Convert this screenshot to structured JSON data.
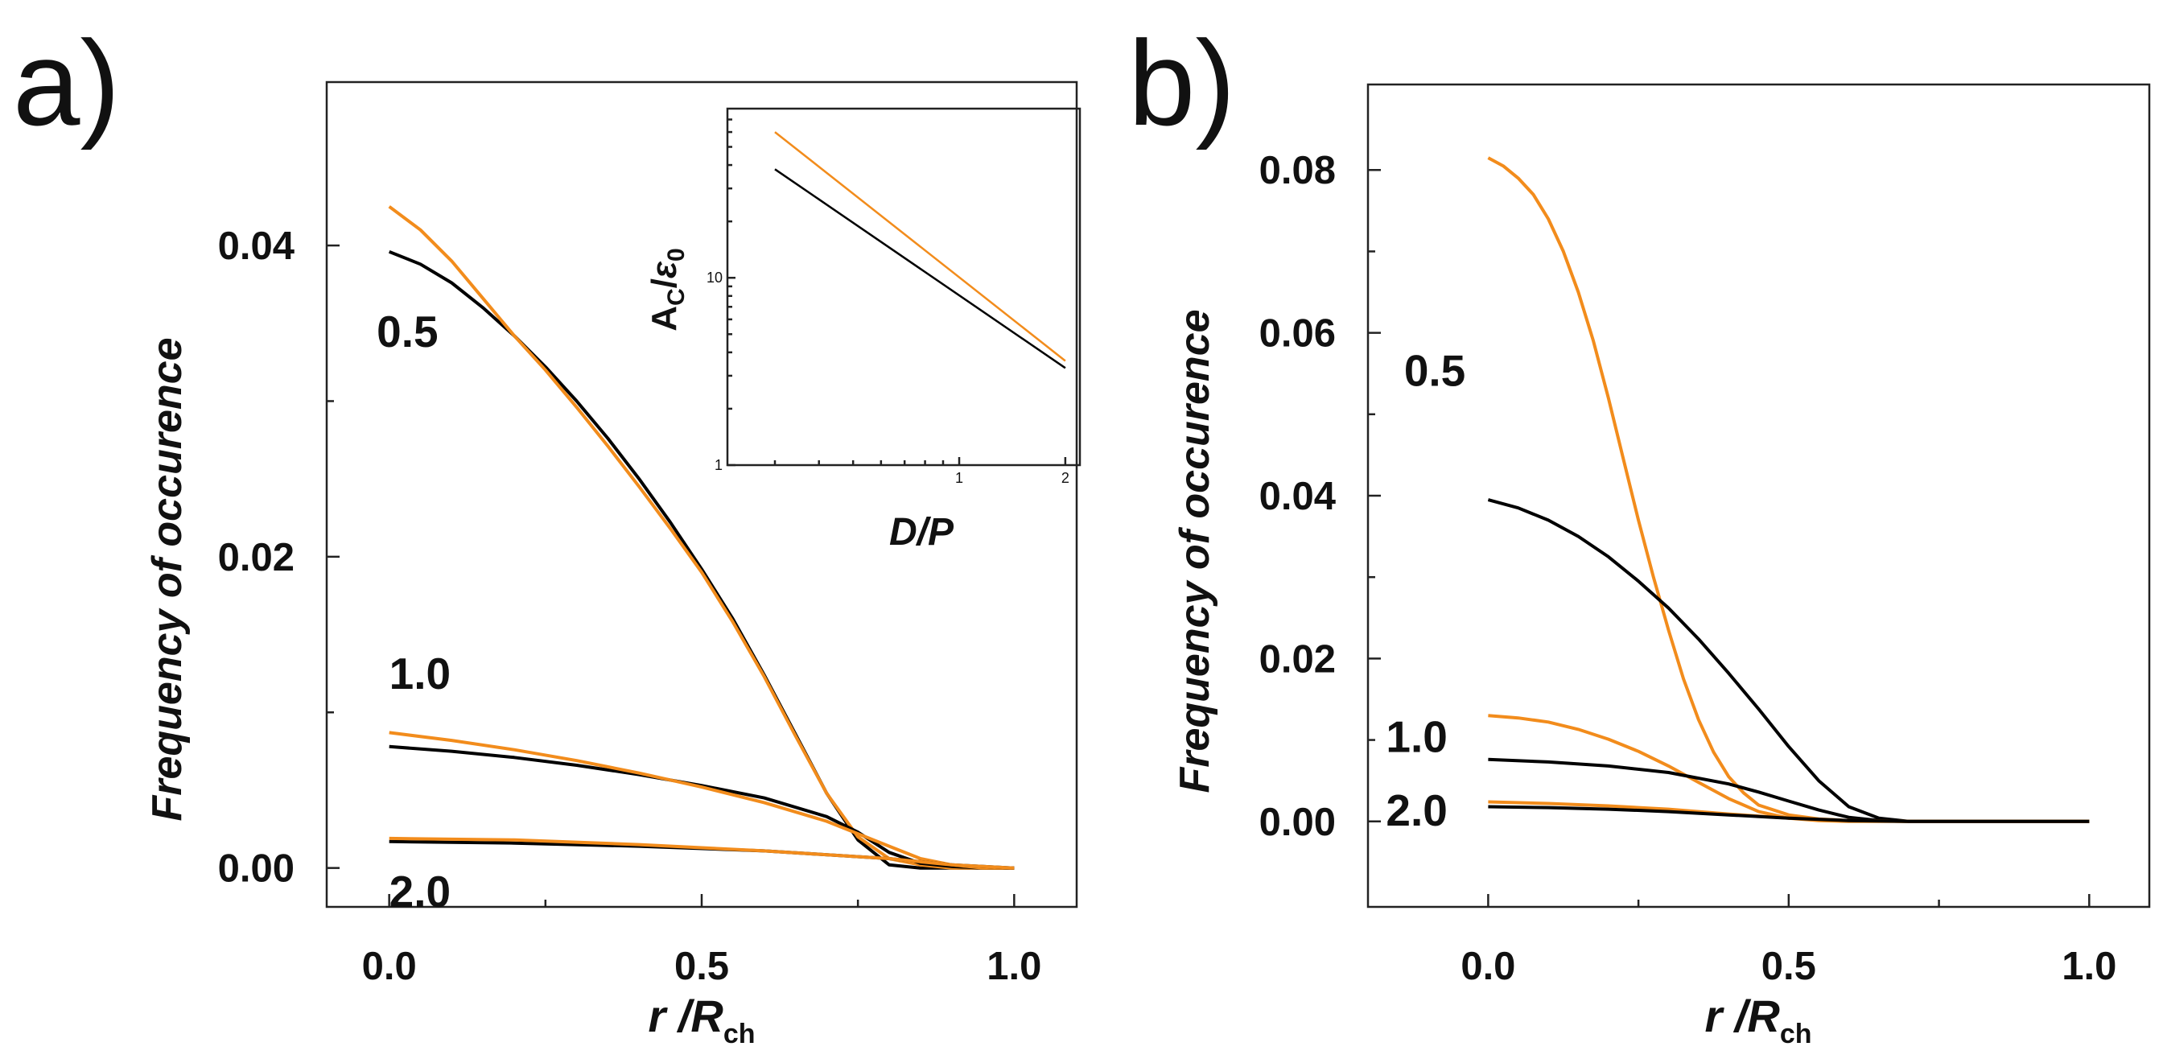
{
  "colors": {
    "black": "#000000",
    "orange": "#f28c1c"
  },
  "chart_data": [
    {
      "panel": "a)",
      "type": "line",
      "xlabel": "r /R",
      "xlabel_sub": "ch",
      "ylabel": "Frequency of occurence",
      "xlim": [
        -0.1,
        1.1
      ],
      "ylim": [
        -0.0025,
        0.0505
      ],
      "xticks": [
        "0.0",
        "0.5",
        "1.0"
      ],
      "xtick_values": [
        0,
        0.5,
        1
      ],
      "yticks": [
        "0.00",
        "0.02",
        "0.04"
      ],
      "ytick_values": [
        0,
        0.02,
        0.04
      ],
      "curve_labels": [
        {
          "text": "0.5",
          "x": -0.02,
          "y": 0.0335
        },
        {
          "text": "1.0",
          "x": 0.0,
          "y": 0.0115
        },
        {
          "text": "2.0",
          "x": 0.0,
          "y": -0.0025
        }
      ],
      "series": [
        {
          "color": "black",
          "x": [
            0,
            0.05,
            0.1,
            0.15,
            0.2,
            0.25,
            0.3,
            0.35,
            0.4,
            0.45,
            0.5,
            0.55,
            0.6,
            0.65,
            0.7,
            0.75,
            0.8,
            0.85,
            0.9,
            0.95,
            1.0
          ],
          "y": [
            0.0396,
            0.0388,
            0.0376,
            0.036,
            0.0342,
            0.0322,
            0.03,
            0.0276,
            0.025,
            0.0222,
            0.0192,
            0.016,
            0.0124,
            0.0086,
            0.0048,
            0.0018,
            0.0002,
            0.0,
            0.0,
            0.0,
            0.0
          ]
        },
        {
          "color": "orange",
          "x": [
            0,
            0.05,
            0.1,
            0.15,
            0.2,
            0.25,
            0.3,
            0.35,
            0.4,
            0.45,
            0.5,
            0.55,
            0.6,
            0.65,
            0.7,
            0.75,
            0.8,
            0.85,
            0.9,
            0.95,
            1.0
          ],
          "y": [
            0.0425,
            0.041,
            0.039,
            0.0366,
            0.0342,
            0.032,
            0.0296,
            0.0271,
            0.0245,
            0.0218,
            0.019,
            0.0158,
            0.0123,
            0.0085,
            0.0048,
            0.002,
            0.0006,
            0.0002,
            0.0,
            0.0,
            0.0
          ]
        },
        {
          "color": "black",
          "x": [
            0,
            0.1,
            0.2,
            0.3,
            0.4,
            0.5,
            0.6,
            0.7,
            0.75,
            0.8,
            0.85,
            0.9,
            0.95,
            1.0
          ],
          "y": [
            0.0078,
            0.0075,
            0.0071,
            0.0066,
            0.006,
            0.0053,
            0.0045,
            0.0033,
            0.0023,
            0.001,
            0.0003,
            0.0001,
            0.0,
            0.0
          ]
        },
        {
          "color": "orange",
          "x": [
            0,
            0.1,
            0.2,
            0.3,
            0.4,
            0.5,
            0.6,
            0.7,
            0.75,
            0.8,
            0.85,
            0.9,
            0.95,
            1.0
          ],
          "y": [
            0.0087,
            0.0082,
            0.0076,
            0.0069,
            0.0061,
            0.0052,
            0.0042,
            0.003,
            0.0022,
            0.0014,
            0.0006,
            0.0002,
            0.0,
            0.0
          ]
        },
        {
          "color": "black",
          "x": [
            0,
            0.2,
            0.4,
            0.6,
            0.8,
            0.9,
            1.0
          ],
          "y": [
            0.0017,
            0.0016,
            0.0014,
            0.0011,
            0.0006,
            0.0002,
            0.0
          ]
        },
        {
          "color": "orange",
          "x": [
            0,
            0.2,
            0.4,
            0.6,
            0.8,
            0.9,
            1.0
          ],
          "y": [
            0.0019,
            0.0018,
            0.0015,
            0.0011,
            0.0006,
            0.0002,
            0.0
          ]
        }
      ],
      "inset": {
        "type": "line",
        "log_x": true,
        "log_y": true,
        "xlabel": "D/P",
        "ylabel_main": "A",
        "ylabel_sub": "C",
        "ylabel_sep": "/",
        "ylabel_eps": "ε",
        "ylabel_eps_sub": "0",
        "xlim": [
          0.22,
          2.2
        ],
        "ylim": [
          1,
          80
        ],
        "xticks": [
          "1",
          "2"
        ],
        "xtick_values": [
          1,
          2
        ],
        "yticks": [
          "1",
          "10"
        ],
        "ytick_values": [
          1,
          10
        ],
        "series": [
          {
            "color": "black",
            "x": [
              0.3,
              2.0
            ],
            "y": [
              38,
              3.3
            ]
          },
          {
            "color": "orange",
            "x": [
              0.3,
              2.0
            ],
            "y": [
              60,
              3.6
            ]
          }
        ]
      }
    },
    {
      "panel": "b)",
      "type": "line",
      "xlabel": "r /R",
      "xlabel_sub": "ch",
      "ylabel": "Frequency of occurence",
      "xlim": [
        -0.2,
        1.1
      ],
      "ylim": [
        -0.0105,
        0.0905
      ],
      "xticks": [
        "0.0",
        "0.5",
        "1.0"
      ],
      "xtick_values": [
        0,
        0.5,
        1
      ],
      "yticks": [
        "0.00",
        "0.02",
        "0.04",
        "0.06",
        "0.08"
      ],
      "ytick_values": [
        0,
        0.02,
        0.04,
        0.06,
        0.08
      ],
      "curve_labels": [
        {
          "text": "0.5",
          "x": -0.14,
          "y": 0.0535
        },
        {
          "text": "1.0",
          "x": -0.17,
          "y": 0.0085
        },
        {
          "text": "2.0",
          "x": -0.17,
          "y": -0.0005
        }
      ],
      "series": [
        {
          "color": "orange",
          "x": [
            0,
            0.025,
            0.05,
            0.075,
            0.1,
            0.125,
            0.15,
            0.175,
            0.2,
            0.225,
            0.25,
            0.275,
            0.3,
            0.325,
            0.35,
            0.375,
            0.4,
            0.425,
            0.45,
            0.5,
            0.55,
            0.6,
            0.7,
            0.8,
            1.0
          ],
          "y": [
            0.0815,
            0.0805,
            0.079,
            0.077,
            0.074,
            0.07,
            0.065,
            0.059,
            0.052,
            0.0445,
            0.037,
            0.03,
            0.0235,
            0.0175,
            0.0125,
            0.0085,
            0.0055,
            0.0035,
            0.002,
            0.0008,
            0.0003,
            0.0001,
            0.0,
            0.0,
            0.0
          ]
        },
        {
          "color": "black",
          "x": [
            0,
            0.05,
            0.1,
            0.15,
            0.2,
            0.25,
            0.3,
            0.35,
            0.4,
            0.45,
            0.5,
            0.55,
            0.6,
            0.65,
            0.7,
            0.8,
            1.0
          ],
          "y": [
            0.0395,
            0.0385,
            0.037,
            0.035,
            0.0325,
            0.0295,
            0.0262,
            0.0224,
            0.0182,
            0.0138,
            0.0092,
            0.005,
            0.0018,
            0.0004,
            0.0,
            0.0,
            0.0
          ]
        },
        {
          "color": "orange",
          "x": [
            0,
            0.05,
            0.1,
            0.15,
            0.2,
            0.25,
            0.3,
            0.35,
            0.4,
            0.45,
            0.5,
            0.55,
            0.6,
            0.7,
            0.8,
            1.0
          ],
          "y": [
            0.013,
            0.0127,
            0.0122,
            0.0113,
            0.0101,
            0.0086,
            0.0068,
            0.0048,
            0.0028,
            0.0012,
            0.0004,
            0.0001,
            0.0,
            0.0,
            0.0,
            0.0
          ]
        },
        {
          "color": "black",
          "x": [
            0,
            0.1,
            0.2,
            0.3,
            0.4,
            0.45,
            0.5,
            0.55,
            0.6,
            0.65,
            0.7,
            0.8,
            1.0
          ],
          "y": [
            0.0076,
            0.0073,
            0.0068,
            0.006,
            0.0046,
            0.0036,
            0.0025,
            0.0014,
            0.0005,
            0.0001,
            0.0,
            0.0,
            0.0
          ]
        },
        {
          "color": "orange",
          "x": [
            0,
            0.1,
            0.2,
            0.3,
            0.4,
            0.5,
            0.6,
            0.7,
            1.0
          ],
          "y": [
            0.0024,
            0.0022,
            0.0019,
            0.0015,
            0.0009,
            0.0004,
            0.0001,
            0.0,
            0.0
          ]
        },
        {
          "color": "black",
          "x": [
            0,
            0.1,
            0.2,
            0.3,
            0.4,
            0.5,
            0.6,
            0.7,
            1.0
          ],
          "y": [
            0.0018,
            0.0017,
            0.0015,
            0.0012,
            0.0008,
            0.0004,
            0.0001,
            0.0,
            0.0
          ]
        }
      ]
    }
  ]
}
